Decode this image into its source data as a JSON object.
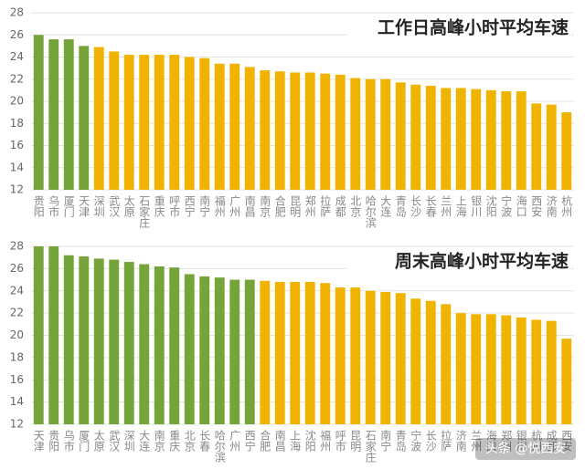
{
  "chart_data": [
    {
      "type": "bar",
      "title": "工作日高峰小时平均车速",
      "categories": [
        "贵阳",
        "乌市",
        "厦门",
        "天津",
        "深圳",
        "武汉",
        "太原",
        "石家庄",
        "重庆",
        "呼市",
        "西宁",
        "南宁",
        "福州",
        "广州",
        "南昌",
        "南京",
        "合肥",
        "昆明",
        "郑州",
        "拉萨",
        "成都",
        "北京",
        "哈尔滨",
        "大连",
        "青岛",
        "长沙",
        "长春",
        "兰州",
        "上海",
        "银川",
        "沈阳",
        "宁波",
        "海口",
        "西安",
        "济南",
        "杭州"
      ],
      "values": [
        26.0,
        25.6,
        25.6,
        25.0,
        24.9,
        24.5,
        24.2,
        24.2,
        24.2,
        24.2,
        24.0,
        23.9,
        23.4,
        23.4,
        23.1,
        22.8,
        22.7,
        22.6,
        22.6,
        22.5,
        22.4,
        22.1,
        22.0,
        22.0,
        21.7,
        21.5,
        21.4,
        21.2,
        21.2,
        21.1,
        21.0,
        20.9,
        20.9,
        19.8,
        19.7,
        19.0
      ],
      "colors": [
        "#77a33b",
        "#77a33b",
        "#77a33b",
        "#77a33b",
        "#f0b400",
        "#f0b400",
        "#f0b400",
        "#f0b400",
        "#f0b400",
        "#f0b400",
        "#f0b400",
        "#f0b400",
        "#f0b400",
        "#f0b400",
        "#f0b400",
        "#f0b400",
        "#f0b400",
        "#f0b400",
        "#f0b400",
        "#f0b400",
        "#f0b400",
        "#f0b400",
        "#f0b400",
        "#f0b400",
        "#f0b400",
        "#f0b400",
        "#f0b400",
        "#f0b400",
        "#f0b400",
        "#f0b400",
        "#f0b400",
        "#f0b400",
        "#f0b400",
        "#f0b400",
        "#f0b400",
        "#f0b400"
      ],
      "ylim": [
        12,
        28
      ],
      "yticks": [
        12,
        14,
        16,
        18,
        20,
        22,
        24,
        26,
        28
      ],
      "grid": true
    },
    {
      "type": "bar",
      "title": "周末高峰小时平均车速",
      "categories": [
        "天津",
        "贵阳",
        "乌市",
        "厦门",
        "太原",
        "武汉",
        "深圳",
        "大连",
        "南京",
        "重庆",
        "北京",
        "长春",
        "哈尔滨",
        "广州",
        "西宁",
        "合肥",
        "南昌",
        "上海",
        "沈阳",
        "福州",
        "呼市",
        "昆明",
        "石家庄",
        "南宁",
        "青岛",
        "宁波",
        "长沙",
        "拉萨",
        "济南",
        "兰州",
        "海口",
        "郑州",
        "银川",
        "杭州",
        "成都",
        "西安"
      ],
      "values": [
        28.0,
        28.0,
        27.2,
        27.1,
        26.9,
        26.8,
        26.6,
        26.4,
        26.2,
        26.1,
        25.5,
        25.3,
        25.2,
        25.0,
        25.0,
        24.9,
        24.8,
        24.8,
        24.8,
        24.7,
        24.3,
        24.3,
        24.0,
        23.9,
        23.8,
        23.3,
        23.1,
        22.8,
        22.0,
        21.9,
        21.9,
        21.8,
        21.6,
        21.4,
        21.3,
        19.7
      ],
      "colors": [
        "#77a33b",
        "#77a33b",
        "#77a33b",
        "#77a33b",
        "#77a33b",
        "#77a33b",
        "#77a33b",
        "#77a33b",
        "#77a33b",
        "#77a33b",
        "#77a33b",
        "#77a33b",
        "#77a33b",
        "#77a33b",
        "#77a33b",
        "#f0b400",
        "#f0b400",
        "#f0b400",
        "#f0b400",
        "#f0b400",
        "#f0b400",
        "#f0b400",
        "#f0b400",
        "#f0b400",
        "#f0b400",
        "#f0b400",
        "#f0b400",
        "#f0b400",
        "#f0b400",
        "#f0b400",
        "#f0b400",
        "#f0b400",
        "#f0b400",
        "#f0b400",
        "#f0b400",
        "#f0b400"
      ],
      "ylim": [
        12,
        28
      ],
      "yticks": [
        12,
        14,
        16,
        18,
        20,
        22,
        24,
        26,
        28
      ],
      "grid": true
    }
  ],
  "watermark": "头条 @悦西安"
}
